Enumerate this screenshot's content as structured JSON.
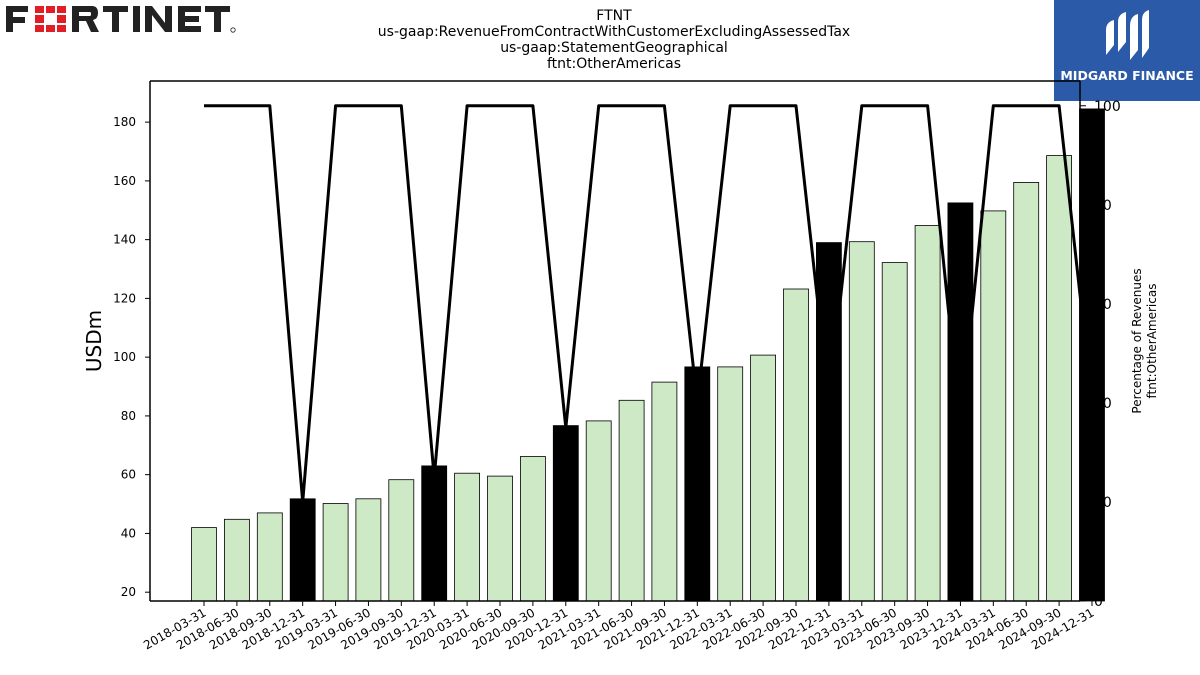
{
  "brand": {
    "left_logo_text": "FORTINET",
    "right_logo_text": "MIDGARD FINANCE",
    "right_logo_bg": "#2b5aa8",
    "fortinet_red": "#e11d25",
    "fortinet_dark": "#222222"
  },
  "chart_data": {
    "type": "bar",
    "title_lines": [
      "FTNT",
      "us-gaap:RevenueFromContractWithCustomerExcludingAssessedTax",
      "us-gaap:StatementGeographical",
      "ftnt:OtherAmericas"
    ],
    "ylabel": "USDm",
    "y2label_lines": [
      "Percentage of Revenues",
      "ftnt:OtherAmericas"
    ],
    "ylim": [
      17,
      194
    ],
    "y2lim": [
      0,
      105
    ],
    "yticks": [
      20,
      40,
      60,
      80,
      100,
      120,
      140,
      160,
      180
    ],
    "y2ticks": [
      0,
      20,
      40,
      60,
      80,
      100
    ],
    "categories": [
      "2018-03-31",
      "2018-06-30",
      "2018-09-30",
      "2018-12-31",
      "2019-03-31",
      "2019-06-30",
      "2019-09-30",
      "2019-12-31",
      "2020-03-31",
      "2020-06-30",
      "2020-09-30",
      "2020-12-31",
      "2021-03-31",
      "2021-06-30",
      "2021-09-30",
      "2021-12-31",
      "2022-03-31",
      "2022-06-30",
      "2022-09-30",
      "2022-12-31",
      "2023-03-31",
      "2023-06-30",
      "2023-09-30",
      "2023-12-31",
      "2024-03-31",
      "2024-06-30",
      "2024-09-30",
      "2024-12-31"
    ],
    "values": [
      42.0,
      44.8,
      47.0,
      51.8,
      50.2,
      51.8,
      58.3,
      63.0,
      60.5,
      59.5,
      66.2,
      76.7,
      78.3,
      85.3,
      91.5,
      96.7,
      96.7,
      100.7,
      123.2,
      139.0,
      139.3,
      132.2,
      144.8,
      152.5,
      149.8,
      159.5,
      168.6,
      184.5
    ],
    "bar_colors": [
      "#cde9c6",
      "#cde9c6",
      "#cde9c6",
      "#000000",
      "#cde9c6",
      "#cde9c6",
      "#cde9c6",
      "#000000",
      "#cde9c6",
      "#cde9c6",
      "#cde9c6",
      "#000000",
      "#cde9c6",
      "#cde9c6",
      "#cde9c6",
      "#000000",
      "#cde9c6",
      "#cde9c6",
      "#cde9c6",
      "#000000",
      "#cde9c6",
      "#cde9c6",
      "#cde9c6",
      "#000000",
      "#cde9c6",
      "#cde9c6",
      "#cde9c6",
      "#000000"
    ],
    "percentage_line": [
      100,
      100,
      100,
      20,
      100,
      100,
      100,
      25,
      100,
      100,
      100,
      35,
      100,
      100,
      100,
      40,
      100,
      100,
      100,
      40,
      100,
      100,
      100,
      35,
      100,
      100,
      100,
      40
    ],
    "line_color": "#000000",
    "grid": false
  }
}
